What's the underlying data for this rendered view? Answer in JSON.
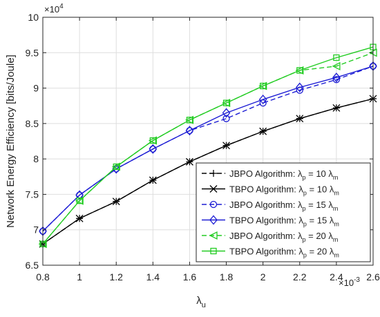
{
  "chart_data": {
    "type": "line",
    "title": "",
    "xlabel": "λ",
    "xlabel_sub": "u",
    "ylabel": "Network Energy Efficiency [bits/Joule]",
    "x_multiplier": "×10",
    "x_exponent": "-3",
    "y_multiplier": "×10",
    "y_exponent": "4",
    "x": [
      0.8,
      1.0,
      1.2,
      1.4,
      1.6,
      1.8,
      2.0,
      2.2,
      2.4,
      2.6
    ],
    "xlim": [
      0.8,
      2.6
    ],
    "ylim": [
      6.5,
      10
    ],
    "x_ticks": [
      {
        "value": 0.8,
        "label": "0.8"
      },
      {
        "value": 1.0,
        "label": "1"
      },
      {
        "value": 1.2,
        "label": "1.2"
      },
      {
        "value": 1.4,
        "label": "1.4"
      },
      {
        "value": 1.6,
        "label": "1.6"
      },
      {
        "value": 1.8,
        "label": "1.8"
      },
      {
        "value": 2.0,
        "label": "2"
      },
      {
        "value": 2.2,
        "label": "2.2"
      },
      {
        "value": 2.4,
        "label": "2.4"
      },
      {
        "value": 2.6,
        "label": "2.6"
      }
    ],
    "y_ticks": [
      {
        "value": 6.5,
        "label": "6.5"
      },
      {
        "value": 7.0,
        "label": "7"
      },
      {
        "value": 7.5,
        "label": "7.5"
      },
      {
        "value": 8.0,
        "label": "8"
      },
      {
        "value": 8.5,
        "label": "8.5"
      },
      {
        "value": 9.0,
        "label": "9"
      },
      {
        "value": 9.5,
        "label": "9.5"
      },
      {
        "value": 10.0,
        "label": "10"
      }
    ],
    "grid": true,
    "legend_position": "bottom-right",
    "series": [
      {
        "name": "JBPO Algorithm: λp = 10 λm",
        "legend_prefix": "JBPO Algorithm: λ",
        "legend_sub1": "p",
        "legend_mid": " = 10 λ",
        "legend_sub2": "m",
        "color": "#000000",
        "dash": "dashed",
        "marker": "plus",
        "values": [
          6.8,
          7.16,
          7.4,
          7.7,
          7.96,
          8.19,
          8.39,
          8.57,
          8.72,
          8.85
        ]
      },
      {
        "name": "TBPO Algorithm: λp = 10 λm",
        "legend_prefix": "TBPO Algorithm: λ",
        "legend_sub1": "p",
        "legend_mid": " = 10 λ",
        "legend_sub2": "m",
        "color": "#000000",
        "dash": "solid",
        "marker": "x",
        "values": [
          6.8,
          7.16,
          7.4,
          7.7,
          7.96,
          8.19,
          8.39,
          8.57,
          8.72,
          8.85
        ]
      },
      {
        "name": "JBPO Algorithm: λp = 15 λm",
        "legend_prefix": "JBPO Algorithm: λ",
        "legend_sub1": "p",
        "legend_mid": " = 15 λ",
        "legend_sub2": "m",
        "color": "#1c1cd4",
        "dash": "dashed",
        "marker": "circle",
        "values": [
          6.98,
          7.49,
          7.86,
          8.14,
          8.4,
          8.57,
          8.79,
          8.97,
          9.12,
          9.31
        ]
      },
      {
        "name": "TBPO Algorithm: λp = 15 λm",
        "legend_prefix": "TBPO Algorithm: λ",
        "legend_sub1": "p",
        "legend_mid": " = 15 λ",
        "legend_sub2": "m",
        "color": "#1c1cd4",
        "dash": "solid",
        "marker": "diamond",
        "values": [
          6.98,
          7.49,
          7.86,
          8.14,
          8.4,
          8.65,
          8.84,
          9.01,
          9.15,
          9.31
        ]
      },
      {
        "name": "JBPO Algorithm: λp = 20 λm",
        "legend_prefix": "JBPO Algorithm: λ",
        "legend_sub1": "p",
        "legend_mid": " = 20 λ",
        "legend_sub2": "m",
        "color": "#22cc22",
        "dash": "dashed",
        "marker": "triangle-left",
        "values": [
          6.8,
          7.41,
          7.89,
          8.26,
          8.55,
          8.79,
          9.03,
          9.25,
          9.31,
          9.5
        ]
      },
      {
        "name": "TBPO Algorithm: λp = 20 λm",
        "legend_prefix": "TBPO Algorithm: λ",
        "legend_sub1": "p",
        "legend_mid": " = 20 λ",
        "legend_sub2": "m",
        "color": "#22cc22",
        "dash": "solid",
        "marker": "square",
        "values": [
          6.8,
          7.41,
          7.89,
          8.26,
          8.55,
          8.79,
          9.03,
          9.25,
          9.43,
          9.58
        ]
      }
    ]
  }
}
